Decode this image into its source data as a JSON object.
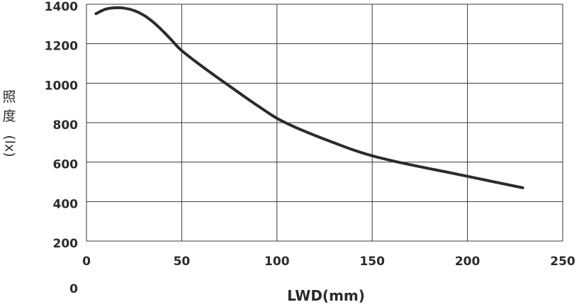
{
  "chart_data": {
    "type": "line",
    "title": "",
    "xlabel": "LWD(mm)",
    "ylabel_lines": [
      "照",
      "度",
      "(lx)"
    ],
    "xlim": [
      0,
      250
    ],
    "ylim": [
      200,
      1400
    ],
    "x_ticks": [
      "0",
      "50",
      "100",
      "150",
      "200",
      "250"
    ],
    "y_ticks": [
      "1400",
      "1200",
      "1000",
      "800",
      "600",
      "400",
      "200"
    ],
    "y_extra_tick": "0",
    "grid": true,
    "series": [
      {
        "x": [
          5,
          10,
          15,
          20,
          25,
          30,
          35,
          40,
          45,
          50,
          60,
          70,
          80,
          90,
          100,
          110,
          120,
          130,
          140,
          150,
          160,
          170,
          180,
          190,
          200,
          210,
          220,
          229
        ],
        "y": [
          1352,
          1375,
          1382,
          1380,
          1368,
          1345,
          1310,
          1265,
          1215,
          1165,
          1090,
          1020,
          952,
          885,
          822,
          775,
          735,
          698,
          662,
          632,
          608,
          587,
          567,
          548,
          528,
          508,
          488,
          470
        ]
      }
    ]
  }
}
